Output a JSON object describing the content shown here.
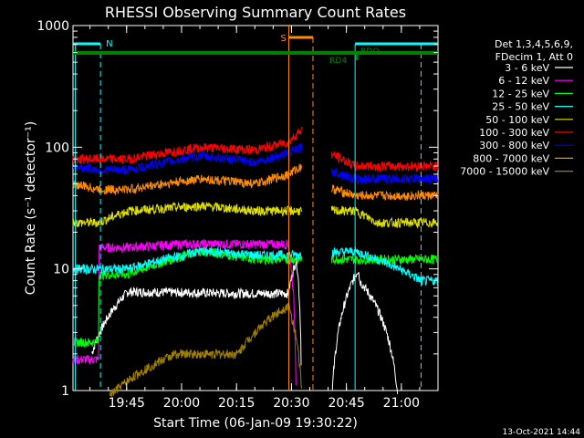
{
  "chart_data": {
    "type": "line",
    "title": "RHESSI Observing Summary Count Rates",
    "xlabel": "Start Time (06-Jan-09 19:30:22)",
    "ylabel": "Count Rate (s⁻¹ detector⁻¹)",
    "yscale": "log",
    "ylim": [
      1,
      1000
    ],
    "xlim": [
      "19:30:22",
      "21:10:00"
    ],
    "x_ticks": [
      "19:45",
      "20:00",
      "20:15",
      "20:30",
      "20:45",
      "21:00"
    ],
    "y_ticks": [
      "1",
      "10",
      "100",
      "1000"
    ],
    "timestamp": "13-Oct-2021 14:44",
    "legend": {
      "position": "right",
      "header": [
        "Det 1,3,4,5,6,9,",
        "FDecim 1, Att 0"
      ],
      "entries": [
        {
          "label": "3 - 6 keV",
          "color": "#ffffff"
        },
        {
          "label": "6 - 12 keV",
          "color": "#ff00ff"
        },
        {
          "label": "12 - 25 keV",
          "color": "#00ff00"
        },
        {
          "label": "25 - 50 keV",
          "color": "#00ffff"
        },
        {
          "label": "50 - 100 keV",
          "color": "#e0e000"
        },
        {
          "label": "100 - 300 keV",
          "color": "#ff0000"
        },
        {
          "label": "300 - 800 keV",
          "color": "#0000ff"
        },
        {
          "label": "800 - 7000 keV",
          "color": "#ff8c00"
        },
        {
          "label": "7000 - 15000 keV",
          "color": "#a08000"
        }
      ]
    },
    "annotations": [
      {
        "label": "N",
        "color": "#00ffff"
      },
      {
        "label": "S",
        "color": "#ff8c00"
      },
      {
        "label": "RD4",
        "color": "#008000"
      },
      {
        "label": "RDO",
        "color": "#008000"
      }
    ],
    "series": [
      {
        "name": "3 - 6 keV",
        "color": "#000000",
        "x_min": [
          0,
          5,
          5.1,
          15,
          45,
          58.8,
          61,
          62.5,
          70,
          78,
          78.2,
          90,
          99.6
        ],
        "values": [
          0,
          0,
          2,
          6.5,
          6.3,
          6.3,
          12,
          0,
          0,
          10,
          8,
          0,
          0
        ]
      },
      {
        "name": "6 - 12 keV",
        "color": "#ff00ff",
        "x_min": [
          0,
          7,
          7.1,
          15,
          30,
          45,
          58.8,
          61,
          62.5,
          80
        ],
        "values": [
          1.8,
          1.8,
          15,
          15,
          16,
          16,
          16,
          0,
          0,
          0
        ]
      },
      {
        "name": "12 - 25 keV",
        "color": "#00ff00",
        "x_min": [
          0,
          7,
          7.1,
          15,
          35,
          50,
          58.8
        ],
        "values": [
          2.5,
          2.5,
          9,
          9,
          14,
          12,
          12
        ]
      },
      {
        "name": "25 - 50 keV",
        "color": "#00ffff",
        "x_min": [
          0,
          7,
          15,
          35,
          50,
          58.8,
          77,
          95
        ],
        "values": [
          10,
          10,
          10,
          14,
          13,
          13,
          14,
          8
        ]
      },
      {
        "name": "50 - 100 keV",
        "color": "#e0e000",
        "x_min": [
          0,
          7,
          15,
          35,
          50,
          58.8,
          62.5,
          77,
          83,
          99.6
        ],
        "values": [
          24,
          24,
          30,
          33,
          30,
          30,
          30,
          30,
          24,
          24
        ]
      },
      {
        "name": "100 - 300 keV",
        "color": "#ff0000",
        "x_min": [
          0,
          7,
          15,
          35,
          50,
          58.8,
          62.5,
          66,
          77,
          83,
          99.6
        ],
        "values": [
          80,
          80,
          80,
          100,
          95,
          110,
          140,
          100,
          70,
          70,
          70
        ]
      },
      {
        "name": "300 - 800 keV",
        "color": "#0000ff",
        "x_min": [
          0,
          7,
          15,
          35,
          50,
          58.8,
          62.5,
          66,
          77,
          83,
          99.6
        ],
        "values": [
          70,
          65,
          65,
          85,
          75,
          90,
          100,
          70,
          55,
          55,
          55
        ]
      },
      {
        "name": "800 - 7000 keV",
        "color": "#ff8c00",
        "x_min": [
          0,
          7,
          15,
          35,
          50,
          58.8,
          62.5,
          66,
          77,
          83,
          99.6
        ],
        "values": [
          50,
          45,
          45,
          55,
          50,
          60,
          70,
          50,
          40,
          40,
          40
        ]
      },
      {
        "name": "7000 - 15000 keV",
        "color": "#a08000",
        "x_min": [
          0,
          10,
          28,
          45,
          58.8,
          62.5,
          70,
          90,
          99.6
        ],
        "values": [
          0.9,
          0.9,
          2,
          2,
          5,
          0.9,
          0.9,
          0.9,
          0.9
        ]
      }
    ],
    "series_visible_lines": [
      {
        "name": "3 - 6 keV",
        "color": "#ffffff"
      }
    ]
  }
}
